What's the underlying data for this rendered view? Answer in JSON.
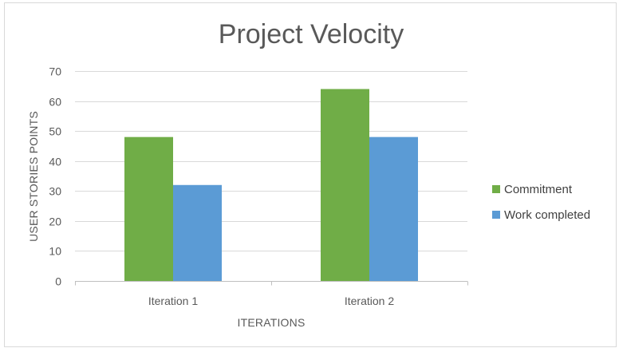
{
  "chart_data": {
    "type": "bar",
    "title": "Project Velocity",
    "xlabel": "ITERATIONS",
    "ylabel": "USER STORIES POINTS",
    "categories": [
      "Iteration 1",
      "Iteration 2"
    ],
    "series": [
      {
        "name": "Commitment",
        "values": [
          48,
          64
        ],
        "color": "#70ad47"
      },
      {
        "name": "Work completed",
        "values": [
          32,
          48
        ],
        "color": "#5b9bd5"
      }
    ],
    "ylim": [
      0,
      70
    ],
    "yticks": [
      0,
      10,
      20,
      30,
      40,
      50,
      60,
      70
    ],
    "grid": true,
    "legend_position": "right"
  }
}
